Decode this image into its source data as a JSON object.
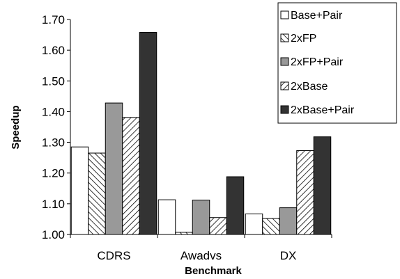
{
  "chart_data": {
    "type": "bar",
    "title": "",
    "xlabel": "Benchmark",
    "ylabel": "Speedup",
    "ylim": [
      1.0,
      1.7
    ],
    "ytick_step": 0.1,
    "ytick_labels": [
      "1.00",
      "1.10",
      "1.20",
      "1.30",
      "1.40",
      "1.50",
      "1.60",
      "1.70"
    ],
    "grid": false,
    "legend_position": "top-right",
    "categories": [
      "CDRS",
      "Awadvs",
      "DX"
    ],
    "series": [
      {
        "name": "Base+Pair",
        "fill": "white",
        "values": [
          1.285,
          1.113,
          1.067
        ]
      },
      {
        "name": "2xFP",
        "fill": "crosshatch",
        "values": [
          1.265,
          1.007,
          1.052
        ]
      },
      {
        "name": "2xFP+Pair",
        "fill": "gray",
        "values": [
          1.428,
          1.112,
          1.087
        ]
      },
      {
        "name": "2xBase",
        "fill": "diagonal-hatch",
        "values": [
          1.381,
          1.055,
          1.273
        ]
      },
      {
        "name": "2xBase+Pair",
        "fill": "dark",
        "values": [
          1.658,
          1.188,
          1.318
        ]
      }
    ]
  },
  "colors": {
    "axis": "#000000",
    "white": "#ffffff",
    "gray": "#999999",
    "dark": "#333333",
    "hatch": "#000000"
  }
}
